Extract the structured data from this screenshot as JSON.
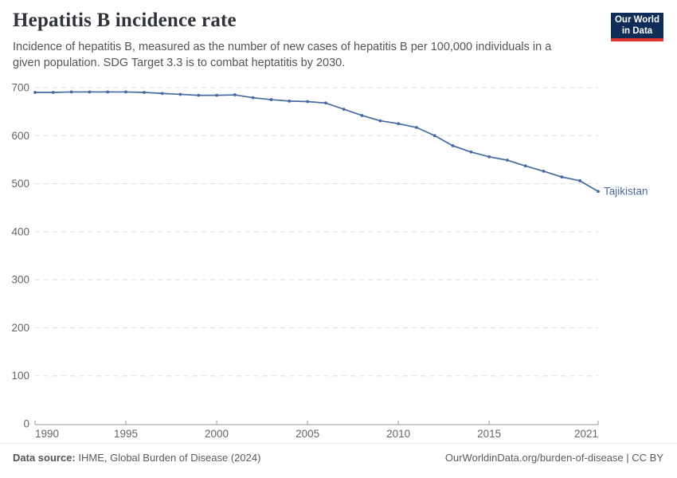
{
  "header": {
    "title": "Hepatitis B incidence rate",
    "subtitle": "Incidence of hepatitis B, measured as the number of new cases of hepatitis B per 100,000 individuals in a given population. SDG Target 3.3 is to combat heptatitis by 2030."
  },
  "logo": {
    "line1": "Our World",
    "line2": "in Data"
  },
  "chart_data": {
    "type": "line",
    "title": "Hepatitis B incidence rate",
    "xlabel": "",
    "ylabel": "",
    "xlim": [
      1990,
      2021
    ],
    "ylim": [
      0,
      700
    ],
    "x": [
      1990,
      1991,
      1992,
      1993,
      1994,
      1995,
      1996,
      1997,
      1998,
      1999,
      2000,
      2001,
      2002,
      2003,
      2004,
      2005,
      2006,
      2007,
      2008,
      2009,
      2010,
      2011,
      2012,
      2013,
      2014,
      2015,
      2016,
      2017,
      2018,
      2019,
      2020,
      2021
    ],
    "series": [
      {
        "name": "Tajikistan",
        "values": [
          690,
          690,
          691,
          691,
          691,
          691,
          690,
          688,
          686,
          684,
          684,
          685,
          679,
          675,
          672,
          671,
          668,
          655,
          642,
          631,
          625,
          617,
          600,
          579,
          566,
          556,
          549,
          537,
          526,
          514,
          506,
          484
        ]
      }
    ],
    "x_ticks": [
      1990,
      1995,
      2000,
      2005,
      2010,
      2015,
      2021
    ],
    "y_ticks": [
      0,
      100,
      200,
      300,
      400,
      500,
      600,
      700
    ],
    "grid": "horizontal-dashed",
    "legend_position": "end-of-line-label"
  },
  "colors": {
    "line": "#4669a0",
    "entity_label": "#4c6a9c",
    "grid": "#dddddd",
    "axis": "#999999",
    "tick_text": "#666666",
    "logo_bg": "#0f2d56",
    "logo_red": "#dc352b"
  },
  "footer": {
    "source_label": "Data source:",
    "source_text": " IHME, Global Burden of Disease (2024)",
    "link_text": "OurWorldinData.org/burden-of-disease",
    "license_suffix": " | CC BY"
  }
}
